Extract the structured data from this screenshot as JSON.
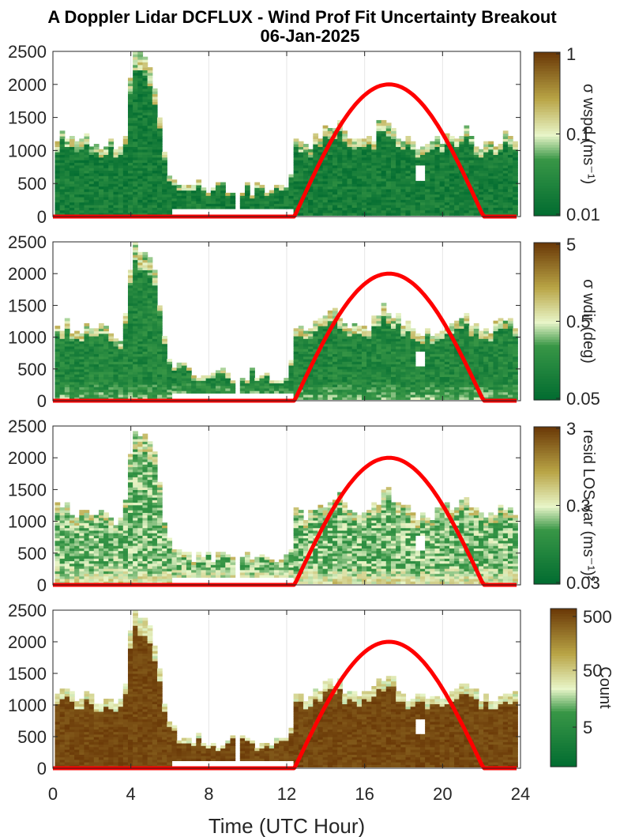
{
  "title": {
    "line1": "A Doppler Lidar DCFLUX - Wind Prof Fit Uncertainty Breakout",
    "line2": "06-Jan-2025"
  },
  "colors": {
    "low": "#006b30",
    "mid": "#e8f5c8",
    "high": "#6b3a08",
    "sun_curve": "#ff0000"
  },
  "chart_data": [
    {
      "type": "heatmap",
      "xlabel": "",
      "ylabel": "",
      "xlim": [
        0,
        24
      ],
      "ylim": [
        0,
        2500
      ],
      "xticks": [
        "0",
        "4",
        "8",
        "12",
        "16",
        "20",
        "24"
      ],
      "yticks": [
        "0",
        "500",
        "1000",
        "1500",
        "2000",
        "2500"
      ],
      "colorbar": {
        "label": "σ wspd (ms⁻¹)",
        "ticks": [
          "1",
          "0.1",
          "0.01"
        ],
        "scale": "log",
        "range": [
          0.01,
          1
        ]
      },
      "sun_curve": {
        "x": [
          0,
          12.4,
          13.5,
          15,
          16,
          17.2,
          18.5,
          19.5,
          21,
          22.1,
          23.8
        ],
        "y": [
          0,
          0,
          590,
          1380,
          1800,
          2000,
          1800,
          1380,
          590,
          0,
          0
        ]
      },
      "cloud_top": {
        "x": [
          0.5,
          1,
          2,
          3,
          3.5,
          4,
          5,
          5.7,
          6,
          7,
          8,
          9,
          10,
          11,
          12,
          12.3,
          12.5,
          13,
          14,
          14.5,
          15,
          16,
          16.5,
          17,
          18,
          19,
          20,
          21,
          22,
          23,
          23.6
        ],
        "y": [
          1200,
          1150,
          1120,
          1050,
          1000,
          2500,
          2200,
          800,
          550,
          450,
          420,
          420,
          400,
          380,
          400,
          1100,
          1150,
          1050,
          1300,
          1450,
          1150,
          1100,
          1300,
          1450,
          1150,
          1050,
          1150,
          1300,
          1050,
          1200,
          1150
        ]
      },
      "fill_level": 0.15
    },
    {
      "type": "heatmap",
      "xlabel": "",
      "ylabel": "",
      "xlim": [
        0,
        24
      ],
      "ylim": [
        0,
        2500
      ],
      "xticks": [
        "0",
        "4",
        "8",
        "12",
        "16",
        "20",
        "24"
      ],
      "yticks": [
        "0",
        "500",
        "1000",
        "1500",
        "2000",
        "2500"
      ],
      "colorbar": {
        "label": "σ wdir (deg)",
        "ticks": [
          "5",
          "0.5",
          "0.05"
        ],
        "scale": "log",
        "range": [
          0.05,
          5
        ]
      },
      "sun_curve": {
        "x": [
          0,
          12.4,
          13.5,
          15,
          16,
          17.2,
          18.5,
          19.5,
          21,
          22.1,
          23.8
        ],
        "y": [
          0,
          0,
          590,
          1380,
          1800,
          2000,
          1800,
          1380,
          590,
          0,
          0
        ]
      },
      "cloud_top": {
        "x": [
          0.5,
          1,
          2,
          3,
          3.5,
          4,
          5,
          5.7,
          6,
          7,
          8,
          9,
          10,
          11,
          12,
          12.3,
          12.5,
          13,
          14,
          14.5,
          15,
          16,
          16.5,
          17,
          18,
          19,
          20,
          21,
          22,
          23,
          23.6
        ],
        "y": [
          1200,
          1150,
          1120,
          1050,
          1000,
          2500,
          2200,
          800,
          550,
          450,
          420,
          420,
          400,
          380,
          400,
          1100,
          1150,
          1050,
          1300,
          1450,
          1150,
          1100,
          1300,
          1450,
          1150,
          1050,
          1150,
          1300,
          1050,
          1200,
          1150
        ]
      },
      "fill_level": 0.22
    },
    {
      "type": "heatmap",
      "xlabel": "",
      "ylabel": "",
      "xlim": [
        0,
        24
      ],
      "ylim": [
        0,
        2500
      ],
      "xticks": [
        "0",
        "4",
        "8",
        "12",
        "16",
        "20",
        "24"
      ],
      "yticks": [
        "0",
        "500",
        "1000",
        "1500",
        "2000",
        "2500"
      ],
      "colorbar": {
        "label": "resid LOS var (ms⁻¹)²",
        "ticks": [
          "3",
          "0.3",
          "0.03"
        ],
        "scale": "log",
        "range": [
          0.03,
          3
        ]
      },
      "sun_curve": {
        "x": [
          0,
          12.4,
          13.5,
          15,
          16,
          17.2,
          18.5,
          19.5,
          21,
          22.1,
          23.8
        ],
        "y": [
          0,
          0,
          590,
          1380,
          1800,
          2000,
          1800,
          1380,
          590,
          0,
          0
        ]
      },
      "cloud_top": {
        "x": [
          0.5,
          1,
          2,
          3,
          3.5,
          4,
          5,
          5.7,
          6,
          7,
          8,
          9,
          10,
          11,
          12,
          12.3,
          12.5,
          13,
          14,
          14.5,
          15,
          16,
          16.5,
          17,
          18,
          19,
          20,
          21,
          22,
          23,
          23.6
        ],
        "y": [
          1200,
          1150,
          1120,
          1050,
          1000,
          2500,
          2200,
          800,
          550,
          450,
          420,
          420,
          400,
          380,
          400,
          1100,
          1150,
          1050,
          1300,
          1450,
          1150,
          1100,
          1300,
          1450,
          1150,
          1050,
          1150,
          1300,
          1050,
          1200,
          1150
        ]
      },
      "fill_level": 0.4
    },
    {
      "type": "heatmap",
      "xlabel": "Time (UTC Hour)",
      "ylabel": "",
      "xlim": [
        0,
        24
      ],
      "ylim": [
        0,
        2500
      ],
      "xticks": [
        "0",
        "4",
        "8",
        "12",
        "16",
        "20",
        "24"
      ],
      "yticks": [
        "0",
        "500",
        "1000",
        "1500",
        "2000",
        "2500"
      ],
      "colorbar": {
        "label": "Count",
        "ticks": [
          "500",
          "50",
          "5"
        ],
        "scale": "log",
        "range": [
          1,
          500
        ]
      },
      "sun_curve": {
        "x": [
          0,
          12.4,
          13.5,
          15,
          16,
          17.2,
          18.5,
          19.5,
          21,
          22.1,
          23.8
        ],
        "y": [
          0,
          0,
          590,
          1380,
          1800,
          2000,
          1800,
          1380,
          590,
          0,
          0
        ]
      },
      "cloud_top": {
        "x": [
          0.5,
          1,
          2,
          3,
          3.5,
          4,
          5,
          5.7,
          6,
          7,
          8,
          9,
          10,
          11,
          12,
          12.3,
          12.5,
          13,
          14,
          14.5,
          15,
          16,
          16.5,
          17,
          18,
          19,
          20,
          21,
          22,
          23,
          23.6
        ],
        "y": [
          1200,
          1150,
          1120,
          1050,
          1000,
          2500,
          2200,
          800,
          550,
          450,
          420,
          420,
          400,
          380,
          400,
          1100,
          1150,
          1050,
          1300,
          1450,
          1150,
          1100,
          1300,
          1450,
          1150,
          1050,
          1150,
          1300,
          1050,
          1200,
          1150
        ]
      },
      "fill_level": 0.92
    }
  ]
}
